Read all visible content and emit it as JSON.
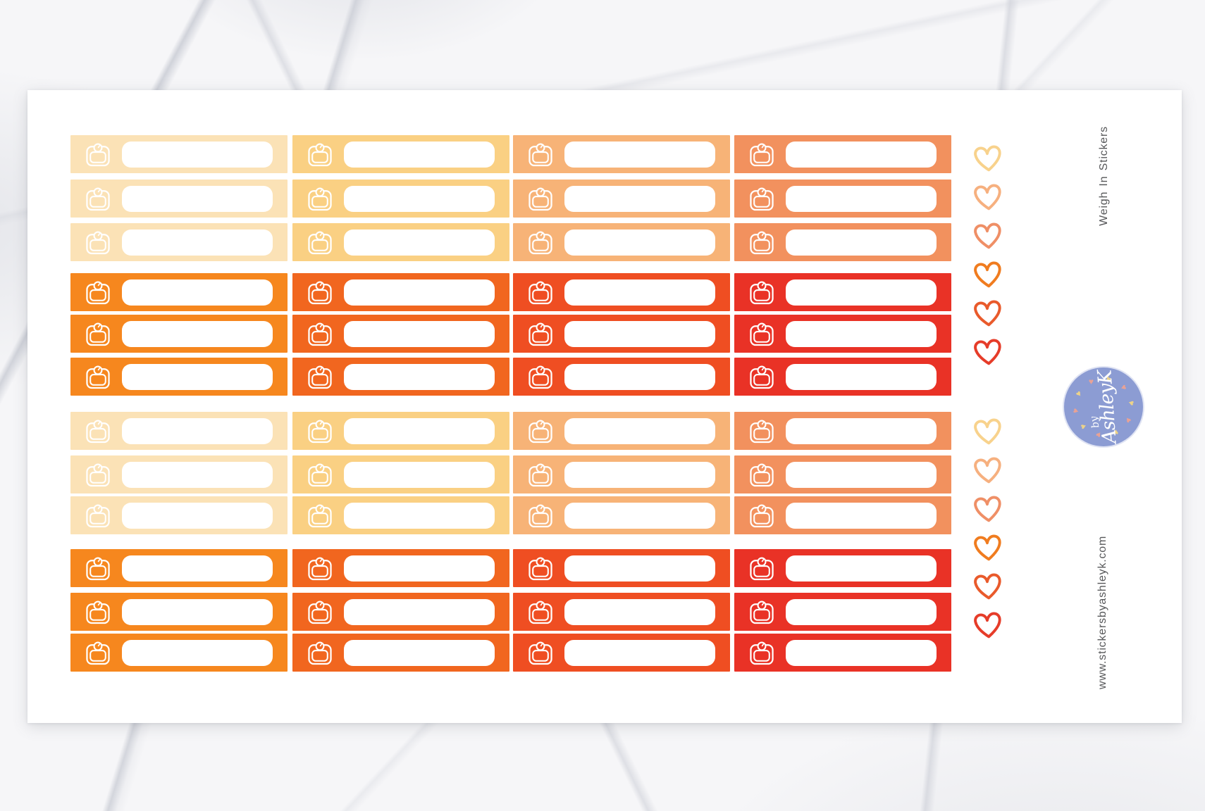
{
  "branding": {
    "title_vertical": "Weigh In Stickers",
    "website_vertical": "www.stickersbyashleyk.com",
    "logo": {
      "line1": "by",
      "line2": "AshleyK",
      "bg_color": "#8C9CD3",
      "text_color": "#FFFFFF",
      "heart_colors": [
        "#EDD389",
        "#E9A295"
      ]
    }
  },
  "sheet": {
    "bg_color": "#FFFFFF",
    "icons": {
      "strip": "weight-scale-icon",
      "accent": "heart-icon"
    },
    "columns": 4,
    "rows": 12,
    "row_pattern": [
      "light",
      "light",
      "light",
      "dark",
      "dark",
      "dark",
      "light",
      "light",
      "light",
      "dark",
      "dark",
      "dark"
    ],
    "column_colors": {
      "light": [
        "#FBE2B6",
        "#FAD083",
        "#F7B377",
        "#F2915E"
      ],
      "dark": [
        "#F6871E",
        "#F1661F",
        "#EF4E22",
        "#E93226"
      ]
    },
    "write_in_box_color": "#FFFFFF",
    "icon_stroke_color": "#FFFFFF"
  },
  "hearts": {
    "groups": 2,
    "per_group": 6,
    "colors": [
      "#F8D28C",
      "#F6B07F",
      "#EF8F66",
      "#F07C1F",
      "#E95A2B",
      "#E63C29"
    ]
  }
}
